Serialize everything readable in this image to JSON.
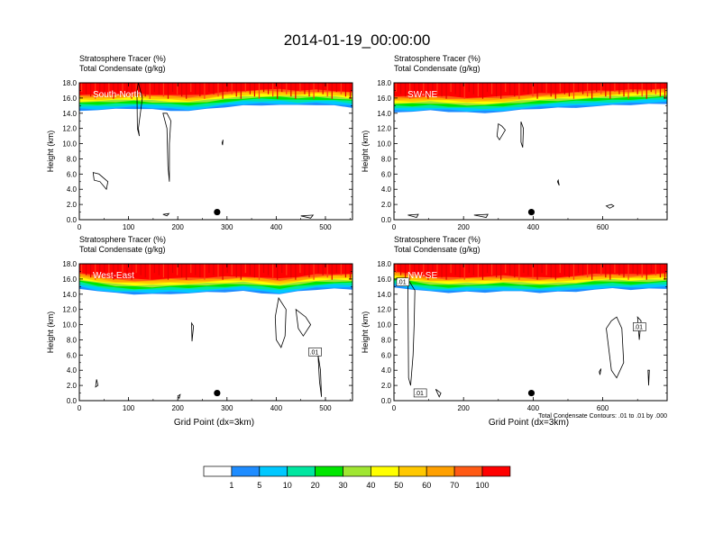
{
  "title": "2014-01-19_00:00:00",
  "subtitle_line1": "Stratosphere Tracer   (%)",
  "subtitle_line2": "Total Condensate   (g/kg)",
  "ylabel": "Height (km)",
  "xlabel": "Grid Point (dx=3km)",
  "contour_note": "Total Condensate Contours: .01 to .01 by .000",
  "colors": {
    "bins": [
      "#ffffff",
      "#1e8cff",
      "#00c8ff",
      "#00e6a0",
      "#00e600",
      "#a0e632",
      "#ffff00",
      "#ffc800",
      "#ffa000",
      "#ff5a14",
      "#ff0000"
    ],
    "contour": "#000000"
  },
  "colorbar": {
    "labels": [
      "1",
      "5",
      "10",
      "20",
      "30",
      "40",
      "50",
      "60",
      "70",
      "100"
    ]
  },
  "chart_data": [
    {
      "type": "heatmap",
      "panel_label": "South-North",
      "xlim": [
        0,
        555
      ],
      "ylim": [
        0,
        18
      ],
      "xticks": [
        "0",
        "100",
        "200",
        "300",
        "400",
        "500"
      ],
      "yticks": [
        "0.0",
        "2.0",
        "4.0",
        "6.0",
        "8.0",
        "10.0",
        "12.0",
        "14.0",
        "16.0",
        "18.0"
      ],
      "tracer_top_km": [
        14.6,
        14.6,
        14.7,
        14.8,
        14.7,
        14.6,
        14.5,
        14.7,
        15.0,
        15.2,
        15.3,
        15.3,
        15.2,
        15.3,
        15.2,
        15.0
      ],
      "dot": [
        280,
        1.0
      ]
    },
    {
      "type": "heatmap",
      "panel_label": "SW-NE",
      "xlim": [
        0,
        785
      ],
      "ylim": [
        0,
        18
      ],
      "xticks": [
        "0",
        "200",
        "400",
        "600"
      ],
      "yticks": [
        "0.0",
        "2.0",
        "4.0",
        "6.0",
        "8.0",
        "10.0",
        "12.0",
        "14.0",
        "16.0",
        "18.0"
      ],
      "tracer_top_km": [
        14.4,
        14.4,
        14.5,
        14.4,
        14.3,
        14.3,
        14.4,
        14.6,
        14.8,
        14.9,
        15.0,
        15.1,
        15.2,
        15.3,
        15.4,
        15.5
      ],
      "dot": [
        395,
        1.0
      ]
    },
    {
      "type": "heatmap",
      "panel_label": "West-East",
      "xlim": [
        0,
        555
      ],
      "ylim": [
        0,
        18
      ],
      "xticks": [
        "0",
        "100",
        "200",
        "300",
        "400",
        "500"
      ],
      "yticks": [
        "0.0",
        "2.0",
        "4.0",
        "6.0",
        "8.0",
        "10.0",
        "12.0",
        "14.0",
        "16.0",
        "18.0"
      ],
      "tracer_top_km": [
        15.0,
        14.6,
        14.3,
        14.2,
        14.2,
        14.3,
        14.3,
        14.4,
        14.5,
        14.6,
        14.4,
        14.2,
        14.5,
        14.8,
        14.9,
        14.9
      ],
      "dot": [
        280,
        1.0
      ],
      "contour_label": ".01"
    },
    {
      "type": "heatmap",
      "panel_label": "NW-SE",
      "xlim": [
        0,
        785
      ],
      "ylim": [
        0,
        18
      ],
      "xticks": [
        "0",
        "200",
        "400",
        "600"
      ],
      "yticks": [
        "0.0",
        "2.0",
        "4.0",
        "6.0",
        "8.0",
        "10.0",
        "12.0",
        "14.0",
        "16.0",
        "18.0"
      ],
      "tracer_top_km": [
        15.2,
        14.8,
        14.5,
        14.4,
        14.5,
        14.5,
        14.6,
        14.5,
        14.4,
        14.5,
        14.6,
        14.8,
        14.9,
        14.8,
        14.9,
        15.0
      ],
      "dot": [
        395,
        1.0
      ],
      "contour_labels": [
        ".01",
        ".01",
        ".01"
      ]
    }
  ]
}
